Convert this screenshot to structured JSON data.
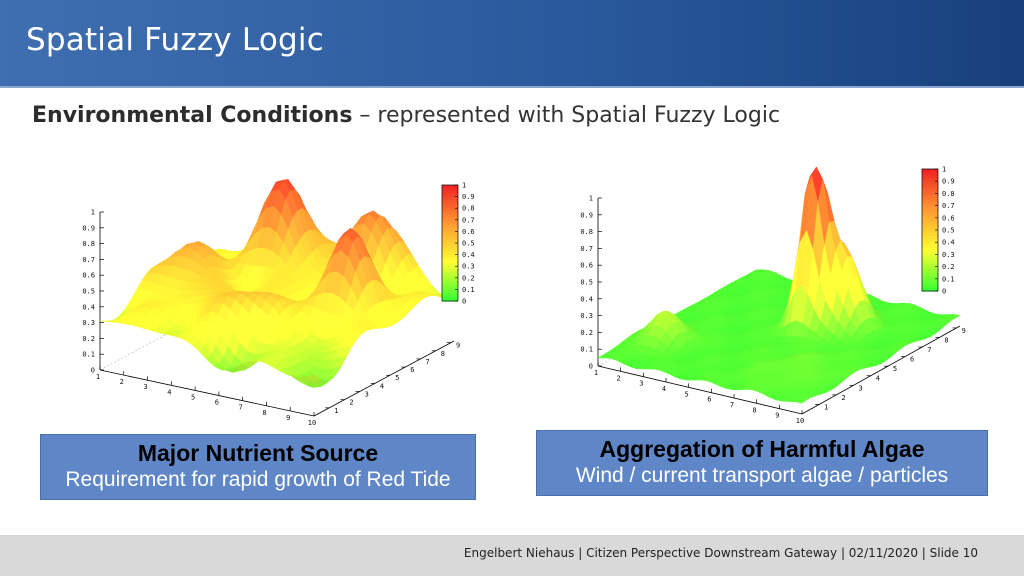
{
  "slide": {
    "title": "Spatial Fuzzy Logic",
    "subtitle_bold": "Environmental Conditions",
    "subtitle_rest": " – represented with Spatial Fuzzy Logic",
    "footer": "Engelbert Niehaus | Citizen Perspective Downstream Gateway  | 02/11/2020 | Slide  10"
  },
  "left_panel": {
    "caption_title": "Major Nutrient Source",
    "caption_sub": "Requirement for rapid growth of Red Tide"
  },
  "right_panel": {
    "caption_title": "Aggregation of Harmful Algae",
    "caption_sub": "Wind / current transport algae / particles"
  },
  "chart_data": [
    {
      "type": "surface",
      "z_ticks": [
        "0",
        "0.1",
        "0.2",
        "0.3",
        "0.4",
        "0.5",
        "0.6",
        "0.7",
        "0.8",
        "0.9",
        "1"
      ],
      "x_ticks": [
        "1",
        "2",
        "3",
        "4",
        "5",
        "6",
        "7",
        "8",
        "9",
        "10"
      ],
      "y_ticks": [
        "1",
        "2",
        "3",
        "4",
        "5",
        "6",
        "7",
        "8",
        "9"
      ],
      "colorbar_ticks": [
        "0",
        "0.1",
        "0.2",
        "0.3",
        "0.4",
        "0.5",
        "0.6",
        "0.7",
        "0.8",
        "0.9",
        "1"
      ],
      "colormap": [
        "#33ff33",
        "#ffff33",
        "#ff9933",
        "#ee2222"
      ],
      "zlim": [
        0,
        1
      ],
      "description": "undulating surface values 0.2–0.95 with several peaks"
    },
    {
      "type": "surface",
      "z_ticks": [
        "0",
        "0.1",
        "0.2",
        "0.3",
        "0.4",
        "0.5",
        "0.6",
        "0.7",
        "0.8",
        "0.9",
        "1"
      ],
      "x_ticks": [
        "1",
        "2",
        "3",
        "4",
        "5",
        "6",
        "7",
        "8",
        "9",
        "10"
      ],
      "y_ticks": [
        "1",
        "2",
        "3",
        "4",
        "5",
        "6",
        "7",
        "8",
        "9"
      ],
      "colorbar_ticks": [
        "0",
        "0.1",
        "0.2",
        "0.3",
        "0.4",
        "0.5",
        "0.6",
        "0.7",
        "0.8",
        "0.9",
        "1"
      ],
      "colormap": [
        "#33ff33",
        "#ffff33",
        "#ff9933",
        "#ee2222"
      ],
      "zlim": [
        0,
        1
      ],
      "description": "mostly flat near 0.05 with one sharp peak reaching 1"
    }
  ]
}
